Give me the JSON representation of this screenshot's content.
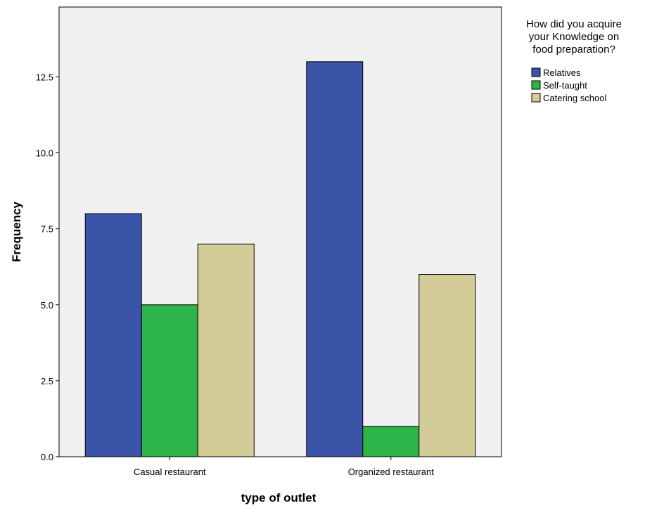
{
  "chart_data": {
    "type": "bar",
    "categories": [
      "Casual restaurant",
      "Organized restaurant"
    ],
    "series": [
      {
        "name": "Relatives",
        "values": [
          8,
          13
        ],
        "color": "#3a55a8"
      },
      {
        "name": "Self-taught",
        "values": [
          5,
          1
        ],
        "color": "#2db54a"
      },
      {
        "name": "Catering school",
        "values": [
          7,
          6
        ],
        "color": "#d3cc98"
      }
    ],
    "xlabel": "type of outlet",
    "ylabel": "Frequency",
    "ylim": [
      0,
      14.8
    ],
    "yticks": [
      "0.0",
      "2.5",
      "5.0",
      "7.5",
      "10.0",
      "12.5"
    ],
    "ytick_values": [
      0,
      2.5,
      5,
      7.5,
      10,
      12.5
    ],
    "grid": false,
    "plot_background": "#f0f0f0",
    "legend": {
      "title": [
        "How did you acquire",
        "your Knowledge on",
        "food preparation?"
      ],
      "placement": "top-right, outside plot"
    }
  }
}
